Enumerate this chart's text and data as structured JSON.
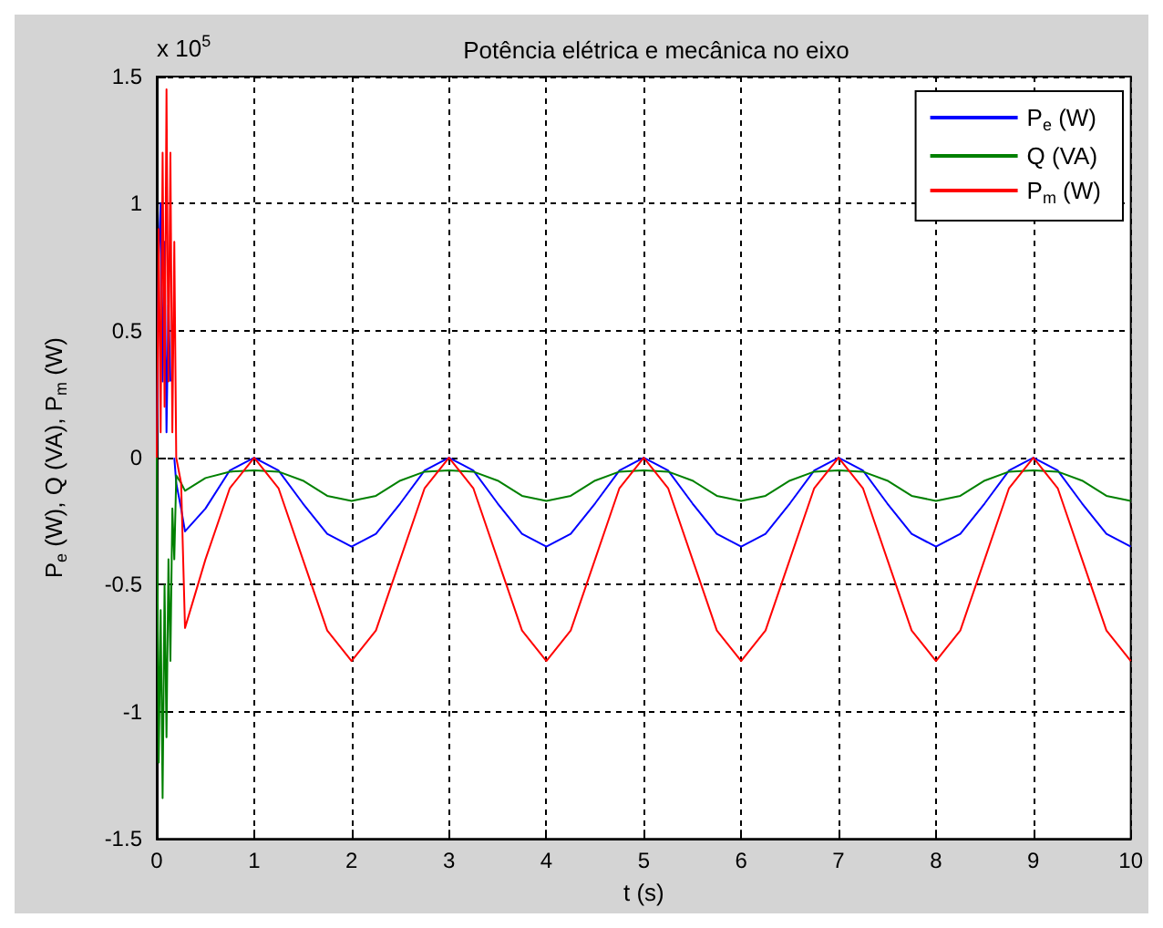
{
  "chart_data": {
    "type": "line",
    "title": "Potência elétrica e mecânica no eixo",
    "xlabel": "t (s)",
    "ylabel": "P$_{e}$ (W), Q (VA), P$_{m}$ (W)",
    "annotations": [
      "x 10$^{5}$"
    ],
    "x": [
      0,
      0.02,
      0.04,
      0.06,
      0.08,
      0.1,
      0.12,
      0.14,
      0.16,
      0.18,
      0.2,
      0.25,
      0.29,
      0.5,
      0.75,
      1,
      1.25,
      1.5,
      1.75,
      2,
      2.25,
      2.5,
      2.75,
      3,
      3.25,
      3.5,
      3.75,
      4,
      4.25,
      4.5,
      4.75,
      5,
      5.25,
      5.5,
      5.75,
      6,
      6.25,
      6.5,
      6.75,
      7,
      7.25,
      7.5,
      7.75,
      8,
      8.25,
      8.5,
      8.75,
      9,
      9.25,
      9.5,
      9.75,
      10
    ],
    "series": [
      {
        "name": "P$_{e}$ (W)",
        "color": "#0000ff",
        "values": [
          0,
          0.8,
          1.0,
          0.3,
          0.85,
          0.1,
          0.6,
          0.3,
          null,
          0,
          -0.1,
          -0.2,
          -0.29,
          -0.2,
          -0.05,
          0,
          -0.05,
          -0.18,
          -0.3,
          -0.35,
          -0.3,
          -0.18,
          -0.05,
          0,
          -0.05,
          -0.18,
          -0.3,
          -0.35,
          -0.3,
          -0.18,
          -0.05,
          0,
          -0.05,
          -0.18,
          -0.3,
          -0.35,
          -0.3,
          -0.18,
          -0.05,
          0,
          -0.05,
          -0.18,
          -0.3,
          -0.35,
          -0.3,
          -0.18,
          -0.05,
          0,
          -0.05,
          -0.18,
          -0.3,
          -0.35
        ]
      },
      {
        "name": "Q (VA)",
        "color": "#008000",
        "values": [
          0,
          -1.2,
          -0.6,
          -1.34,
          -0.5,
          -1.1,
          -0.4,
          -0.8,
          -0.2,
          -0.4,
          -0.07,
          -0.1,
          -0.13,
          -0.08,
          -0.055,
          -0.05,
          -0.055,
          -0.09,
          -0.15,
          -0.17,
          -0.15,
          -0.09,
          -0.055,
          -0.05,
          -0.055,
          -0.09,
          -0.15,
          -0.17,
          -0.15,
          -0.09,
          -0.055,
          -0.05,
          -0.055,
          -0.09,
          -0.15,
          -0.17,
          -0.15,
          -0.09,
          -0.055,
          -0.05,
          -0.055,
          -0.09,
          -0.15,
          -0.17,
          -0.15,
          -0.09,
          -0.055,
          -0.05,
          -0.055,
          -0.09,
          -0.15,
          -0.17
        ]
      },
      {
        "name": "P$_{m}$ (W)",
        "color": "#ff0000",
        "values": [
          0,
          0.9,
          0.1,
          1.2,
          0.2,
          1.45,
          0.3,
          1.2,
          0.1,
          0.85,
          0,
          -0.1,
          -0.67,
          -0.4,
          -0.12,
          0,
          -0.12,
          -0.4,
          -0.68,
          -0.8,
          -0.68,
          -0.4,
          -0.12,
          0,
          -0.12,
          -0.4,
          -0.68,
          -0.8,
          -0.68,
          -0.4,
          -0.12,
          0,
          -0.12,
          -0.4,
          -0.68,
          -0.8,
          -0.68,
          -0.4,
          -0.12,
          0,
          -0.12,
          -0.4,
          -0.68,
          -0.8,
          -0.68,
          -0.4,
          -0.12,
          0,
          -0.12,
          -0.4,
          -0.68,
          -0.8
        ]
      }
    ],
    "xlim": [
      0,
      10
    ],
    "xticks": [
      0,
      1,
      2,
      3,
      4,
      5,
      6,
      7,
      8,
      9,
      10
    ],
    "ylim": [
      -1.5,
      1.5
    ],
    "yticks": [
      -1.5,
      -1,
      -0.5,
      0,
      0.5,
      1,
      1.5
    ],
    "grid": true,
    "legend": "top right",
    "marker": "none",
    "line_style": "solid"
  }
}
